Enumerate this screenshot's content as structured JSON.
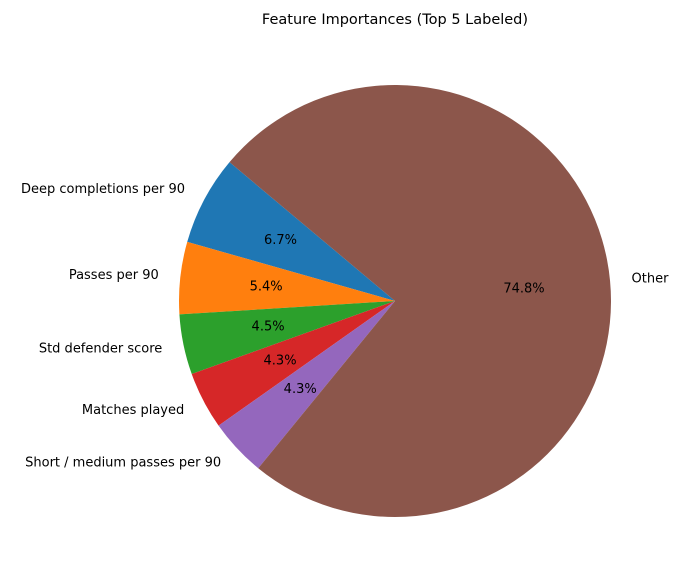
{
  "chart_data": {
    "type": "pie",
    "title": "Feature Importances (Top 5 Labeled)",
    "start_angle_deg": 140,
    "direction": "counterclockwise",
    "slices": [
      {
        "label": "Deep completions per 90",
        "value": 6.7,
        "pct_text": "6.7%",
        "color": "#1f77b4"
      },
      {
        "label": "Passes per 90",
        "value": 5.4,
        "pct_text": "5.4%",
        "color": "#ff7f0e"
      },
      {
        "label": "Std defender score",
        "value": 4.5,
        "pct_text": "4.5%",
        "color": "#2ca02c"
      },
      {
        "label": "Matches played",
        "value": 4.3,
        "pct_text": "4.3%",
        "color": "#d62728"
      },
      {
        "label": "Short / medium passes per 90",
        "value": 4.3,
        "pct_text": "4.3%",
        "color": "#9467bd"
      },
      {
        "label": "Other",
        "value": 74.8,
        "pct_text": "74.8%",
        "color": "#8c564b"
      }
    ]
  }
}
